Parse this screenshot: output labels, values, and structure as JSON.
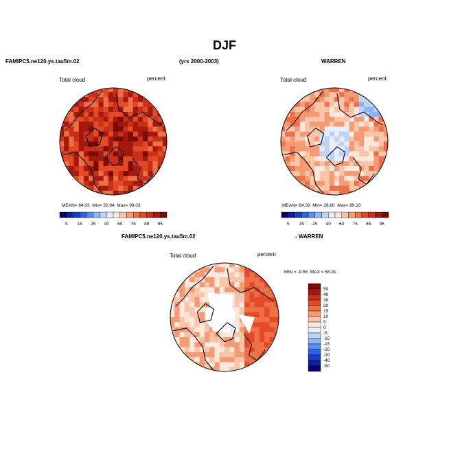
{
  "figure_title": "DJF",
  "header": {
    "left": "FAMIPC5.ne120.ys.tau5m.02",
    "center": "(yrs 2000-2003)",
    "right": "WARREN",
    "diff_left": "FAMIPC5.ne120.ys.tau5m.02",
    "diff_right": "- WARREN"
  },
  "chart_data": [
    {
      "type": "heatmap",
      "projection": "north polar stereographic",
      "variable": "Total cloud",
      "units": "percent",
      "stats": {
        "mean": "84.03",
        "min": "50.94",
        "max": "99.03"
      },
      "stats_labels": {
        "mean": "MEAN=",
        "min": "Min=",
        "max": "Max="
      },
      "colorbar_ticks": [
        "5",
        "15",
        "25",
        "40",
        "60",
        "75",
        "85",
        "95"
      ],
      "levels": [
        5,
        10,
        15,
        20,
        25,
        30,
        40,
        50,
        60,
        70,
        75,
        80,
        85,
        90,
        95
      ],
      "colors": [
        "#08006e",
        "#0b1fa1",
        "#1341c9",
        "#2a63e6",
        "#5a8df0",
        "#8db4f5",
        "#bcd4f8",
        "#e6eefb",
        "#fde8dc",
        "#fac4a8",
        "#f59a73",
        "#ee7047",
        "#e34a26",
        "#c9301a",
        "#a31a0c",
        "#7c0a04"
      ]
    },
    {
      "type": "heatmap",
      "projection": "north polar stereographic",
      "variable": "Total cloud",
      "units": "percent",
      "stats": {
        "mean": "64.33",
        "min": "28.80",
        "max": "89.10"
      },
      "stats_labels": {
        "mean": "MEAN=",
        "min": "Min=",
        "max": "Max="
      },
      "colorbar_ticks": [
        "5",
        "15",
        "25",
        "40",
        "60",
        "75",
        "85",
        "95"
      ]
    },
    {
      "type": "heatmap",
      "projection": "north polar stereographic",
      "variable": "Total cloud",
      "units": "percent",
      "stats": {
        "min": "-9.58",
        "max": "58.91"
      },
      "stats_labels": {
        "min": "MIN =",
        "max": "MAX ="
      },
      "colorbar_ticks": [
        "50",
        "40",
        "30",
        "20",
        "15",
        "10",
        "5",
        "0",
        "-5",
        "-10",
        "-15",
        "-20",
        "-30",
        "-40",
        "-50"
      ],
      "colors": [
        "#7c0a04",
        "#a31a0c",
        "#c9301a",
        "#e34a26",
        "#ee7047",
        "#f59a73",
        "#fac4a8",
        "#fde8dc",
        "#e6eefb",
        "#bcd4f8",
        "#8db4f5",
        "#5a8df0",
        "#2a63e6",
        "#1341c9",
        "#0b1fa1",
        "#08006e"
      ]
    }
  ]
}
